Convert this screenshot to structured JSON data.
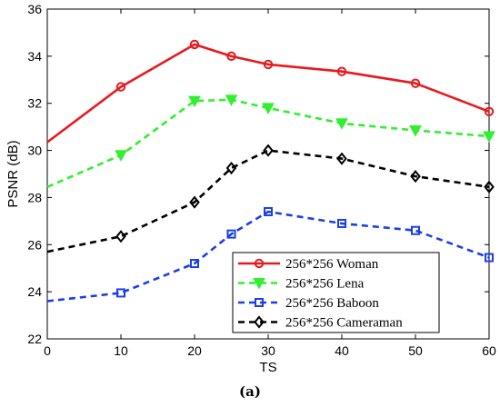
{
  "caption": "(a)",
  "chart_data": {
    "type": "line",
    "title": "",
    "xlabel": "TS",
    "ylabel": "PSNR (dB)",
    "xlim": [
      0,
      60
    ],
    "ylim": [
      22,
      36
    ],
    "xticks": [
      0,
      10,
      20,
      30,
      40,
      50,
      60
    ],
    "yticks": [
      22,
      24,
      26,
      28,
      30,
      32,
      34,
      36
    ],
    "x": [
      0,
      10,
      20,
      25,
      30,
      40,
      50,
      60
    ],
    "grid": false,
    "legend_position": "bottom-right",
    "series": [
      {
        "name": "256*256 Woman",
        "color": "#e8191e",
        "line_style": "solid",
        "marker": "circle",
        "values": [
          30.35,
          32.7,
          34.5,
          34.0,
          33.65,
          33.35,
          32.85,
          31.65
        ]
      },
      {
        "name": "256*256 Lena",
        "color": "#2fef2f",
        "line_style": "dashed",
        "marker": "triangle-down",
        "values": [
          28.45,
          29.8,
          32.1,
          32.15,
          31.8,
          31.15,
          30.85,
          30.6
        ]
      },
      {
        "name": "256*256 Baboon",
        "color": "#1a3fe8",
        "line_style": "dashed",
        "marker": "square",
        "values": [
          23.6,
          23.95,
          25.2,
          26.45,
          27.4,
          26.9,
          26.6,
          25.45
        ]
      },
      {
        "name": "256*256 Cameraman",
        "color": "#000000",
        "line_style": "dashed",
        "marker": "diamond",
        "values": [
          25.7,
          26.35,
          27.8,
          29.25,
          30.0,
          29.65,
          28.9,
          28.45
        ]
      }
    ]
  }
}
